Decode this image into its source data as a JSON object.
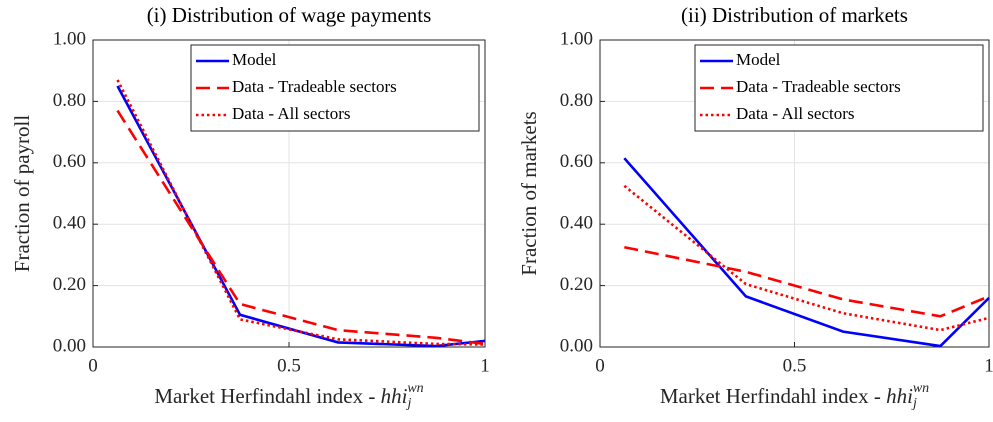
{
  "chart_data": [
    {
      "type": "line",
      "title": "(i) Distribution of wage payments",
      "ylabel": "Fraction of payroll",
      "xlabel": {
        "text": "Market Herfindahl index - ",
        "symbol": "hhi",
        "subscript": "j",
        "superscript": "wn"
      },
      "x": [
        0.0625,
        0.375,
        0.625,
        0.875,
        1
      ],
      "series": [
        {
          "name": "Model",
          "color": "#0000ff",
          "dash": "solid",
          "values": [
            0.85,
            0.105,
            0.015,
            0.003,
            0.02
          ]
        },
        {
          "name": "Data - Tradeable sectors",
          "color": "#ff0000",
          "dash": "dashed",
          "values": [
            0.77,
            0.14,
            0.055,
            0.03,
            0.01
          ]
        },
        {
          "name": "Data - All sectors",
          "color": "#ff0000",
          "dash": "dotted",
          "values": [
            0.87,
            0.09,
            0.025,
            0.01,
            0.008
          ]
        }
      ],
      "xlim": [
        0,
        1
      ],
      "xticks": [
        0,
        0.5,
        1
      ],
      "ylim": [
        0,
        1
      ],
      "yticks": [
        {
          "value": 0,
          "label": "0.00"
        },
        {
          "value": 0.2,
          "label": "0.20"
        },
        {
          "value": 0.4,
          "label": "0.40"
        },
        {
          "value": 0.6,
          "label": "0.60"
        },
        {
          "value": 0.8,
          "label": "0.80"
        },
        {
          "value": 1,
          "label": "1.00"
        }
      ],
      "grid": true,
      "legend": "upper right"
    },
    {
      "type": "line",
      "title": "(ii) Distribution of markets",
      "ylabel": "Fraction of markets",
      "xlabel": {
        "text": "Market Herfindahl index - ",
        "symbol": "hhi",
        "subscript": "j",
        "superscript": "wn"
      },
      "x": [
        0.0625,
        0.375,
        0.625,
        0.875,
        1
      ],
      "series": [
        {
          "name": "Model",
          "color": "#0000ff",
          "dash": "solid",
          "values": [
            0.615,
            0.165,
            0.05,
            0.003,
            0.16
          ]
        },
        {
          "name": "Data - Tradeable sectors",
          "color": "#ff0000",
          "dash": "dashed",
          "values": [
            0.325,
            0.245,
            0.155,
            0.1,
            0.165
          ]
        },
        {
          "name": "Data - All sectors",
          "color": "#ff0000",
          "dash": "dotted",
          "values": [
            0.525,
            0.205,
            0.11,
            0.055,
            0.095
          ]
        }
      ],
      "xlim": [
        0,
        1
      ],
      "xticks": [
        0,
        0.5,
        1
      ],
      "ylim": [
        0,
        1
      ],
      "yticks": [
        {
          "value": 0,
          "label": "0.00"
        },
        {
          "value": 0.2,
          "label": "0.20"
        },
        {
          "value": 0.4,
          "label": "0.40"
        },
        {
          "value": 0.6,
          "label": "0.60"
        },
        {
          "value": 0.8,
          "label": "0.80"
        },
        {
          "value": 1,
          "label": "1.00"
        }
      ],
      "grid": true,
      "legend": "upper right"
    }
  ]
}
